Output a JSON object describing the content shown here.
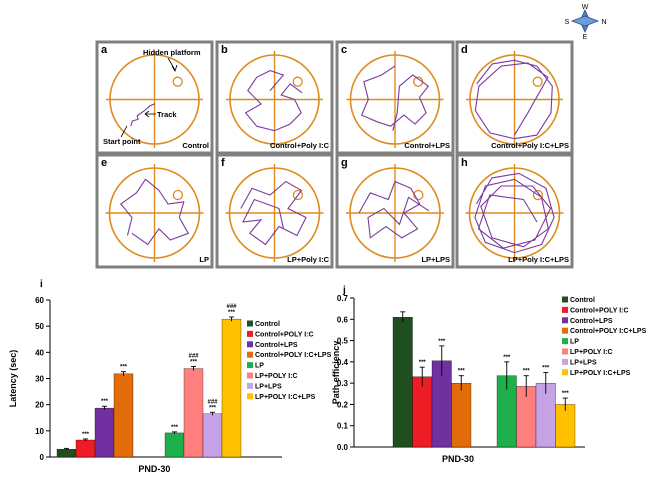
{
  "compass": {
    "n": "N",
    "s": "S",
    "e": "E",
    "w": "W"
  },
  "panels": [
    {
      "letter": "a",
      "caption": "Control",
      "annotations": {
        "hidden_platform": "Hidden platform",
        "track": "Track",
        "start_point": "Start point"
      }
    },
    {
      "letter": "b",
      "caption": "Control+Poly I:C"
    },
    {
      "letter": "c",
      "caption": "Control+LPS"
    },
    {
      "letter": "d",
      "caption": "Control+Poly I:C+LPS"
    },
    {
      "letter": "e",
      "caption": "LP"
    },
    {
      "letter": "f",
      "caption": "LP+Poly I:C"
    },
    {
      "letter": "g",
      "caption": "LP+LPS"
    },
    {
      "letter": "h",
      "caption": "LP+Poly I:C+LPS"
    }
  ],
  "colors": {
    "pool_border": "#e08a1e",
    "path": "#7b3a9e",
    "panel_frame": "#808080",
    "series": [
      "#1f4e1f",
      "#ee1c24",
      "#7030a0",
      "#e36c0a",
      "#1db04a",
      "#ff7f7f",
      "#c5a3e6",
      "#ffc000"
    ]
  },
  "chart_data": [
    {
      "type": "bar",
      "panel_letter": "i",
      "ylabel": "Latency (sec)",
      "xlabel": "PND-30",
      "ylim": [
        0,
        60
      ],
      "yticks": [
        0,
        10,
        20,
        30,
        40,
        50,
        60
      ],
      "grid": false,
      "legend_placement": "right",
      "series": [
        {
          "name": "Control",
          "value": 3,
          "error": 0.3,
          "stars": "",
          "hashes": ""
        },
        {
          "name": "Control+POLY I:C",
          "value": 6.5,
          "error": 0.4,
          "stars": "***",
          "hashes": ""
        },
        {
          "name": "Control+LPS",
          "value": 18.7,
          "error": 0.7,
          "stars": "***",
          "hashes": ""
        },
        {
          "name": "Control+POLY I:C+LPS",
          "value": 31.8,
          "error": 0.8,
          "stars": "***",
          "hashes": ""
        },
        {
          "name": "LP",
          "value": 9.2,
          "error": 0.4,
          "stars": "***",
          "hashes": ""
        },
        {
          "name": "LP+POLY I:C",
          "value": 33.8,
          "error": 0.8,
          "stars": "***",
          "hashes": "###"
        },
        {
          "name": "LP+LPS",
          "value": 16.5,
          "error": 0.6,
          "stars": "***",
          "hashes": "###"
        },
        {
          "name": "LP+POLY I:C+LPS",
          "value": 52.7,
          "error": 0.8,
          "stars": "***",
          "hashes": "###"
        }
      ]
    },
    {
      "type": "bar",
      "panel_letter": "j",
      "ylabel": "Path efficiency",
      "xlabel": "PND-30",
      "ylim": [
        0,
        0.7
      ],
      "yticks": [
        0,
        0.1,
        0.2,
        0.3,
        0.4,
        0.5,
        0.6,
        0.7
      ],
      "grid": false,
      "legend_placement": "right",
      "series": [
        {
          "name": "Control",
          "value": 0.61,
          "error": 0.025,
          "stars": ""
        },
        {
          "name": "Control+POLY I:C",
          "value": 0.33,
          "error": 0.045,
          "stars": "***"
        },
        {
          "name": "Control+LPS",
          "value": 0.405,
          "error": 0.07,
          "stars": "***"
        },
        {
          "name": "Control+POLY I:C+LPS",
          "value": 0.3,
          "error": 0.035,
          "stars": "***"
        },
        {
          "name": "LP",
          "value": 0.335,
          "error": 0.065,
          "stars": "***"
        },
        {
          "name": "LP+POLY I:C",
          "value": 0.285,
          "error": 0.05,
          "stars": "***"
        },
        {
          "name": "LP+LPS",
          "value": 0.3,
          "error": 0.05,
          "stars": "***"
        },
        {
          "name": "LP+POLY I:C+LPS",
          "value": 0.2,
          "error": 0.03,
          "stars": "***"
        }
      ]
    }
  ]
}
